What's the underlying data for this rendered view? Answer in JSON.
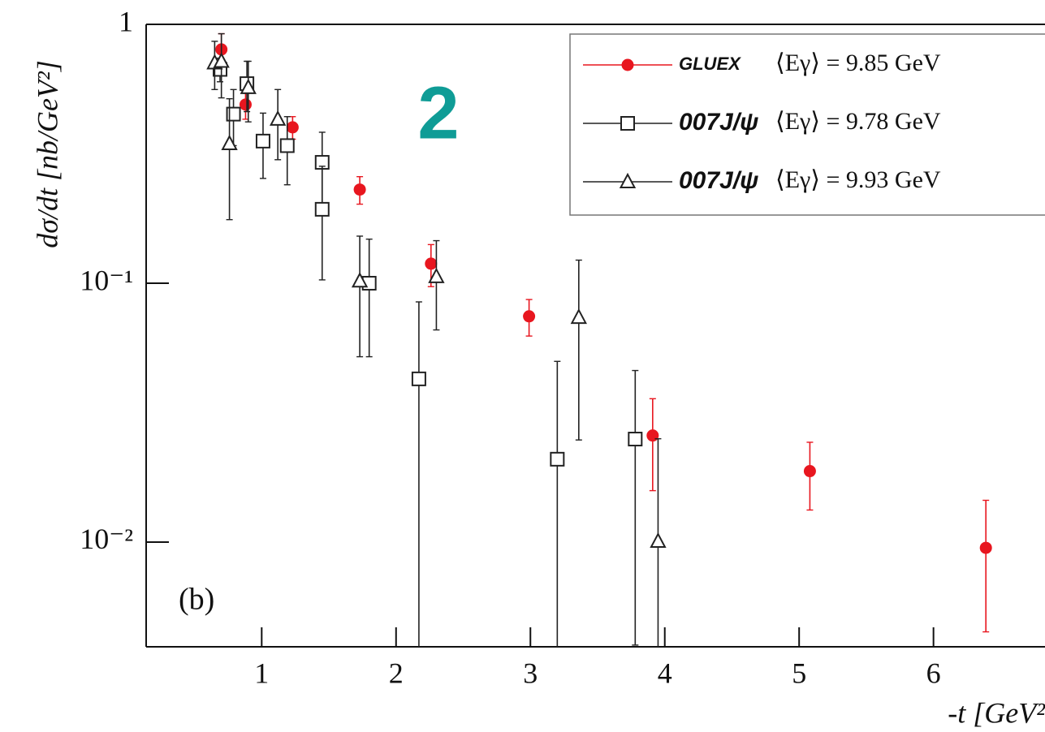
{
  "chart_data": {
    "type": "scatter",
    "y_label": "dσ/dt [nb/GeV²]",
    "x_label": "-t [GeV²",
    "annotations": [
      "(b)",
      "2"
    ],
    "log_y": true,
    "legend": "upper right",
    "xlim": [
      0.14,
      6.83
    ],
    "ylim": [
      0.00394,
      1
    ],
    "xticks": [
      1,
      2,
      3,
      4,
      5,
      6
    ],
    "yticks": [
      {
        "value": 1,
        "label": "1"
      },
      {
        "value": 0.1,
        "label": "10⁻¹"
      },
      {
        "value": 0.01,
        "label": "10⁻²"
      }
    ],
    "series": [
      {
        "name": "⟨Eγ⟩ = 9.85 GeV",
        "logo": "GLUEX",
        "color": "#e8161f",
        "marker": "circle",
        "x": [
          0.7,
          0.88,
          1.23,
          1.73,
          2.26,
          2.99,
          3.91,
          5.08,
          6.39
        ],
        "values": [
          0.8,
          0.49,
          0.4,
          0.23,
          0.119,
          0.0745,
          0.0258,
          0.0188,
          0.0095
        ],
        "errors": [
          0.12,
          0.06,
          0.04,
          0.028,
          0.022,
          0.012,
          0.01,
          0.0055,
          0.005
        ]
      },
      {
        "name": "⟨Eγ⟩ = 9.78 GeV",
        "logo": "007J/ψ",
        "color": "#222222",
        "marker": "square",
        "x": [
          0.69,
          0.79,
          0.89,
          1.01,
          1.19,
          1.45,
          1.45,
          1.8,
          2.17,
          3.2,
          3.78
        ],
        "values": [
          0.67,
          0.45,
          0.59,
          0.354,
          0.34,
          0.293,
          0.193,
          0.1,
          0.0427,
          0.0209,
          0.025
        ],
        "errors": [
          0.07,
          0.11,
          0.13,
          0.1,
          0.1,
          0.09,
          0.09,
          0.048,
          0.042,
          0.029,
          0.021
        ]
      },
      {
        "name": "⟨Eγ⟩ = 9.93 GeV",
        "logo": "007J/ψ",
        "color": "#222222",
        "marker": "triangle",
        "x": [
          0.65,
          0.7,
          0.76,
          0.9,
          1.12,
          1.73,
          2.3,
          3.36,
          3.95
        ],
        "values": [
          0.71,
          0.72,
          0.346,
          0.57,
          0.43,
          0.102,
          0.106,
          0.0738,
          0.01007
        ],
        "errors": [
          0.15,
          0.2,
          0.17,
          0.15,
          0.13,
          0.05,
          0.04,
          0.049,
          0.015
        ]
      }
    ]
  }
}
